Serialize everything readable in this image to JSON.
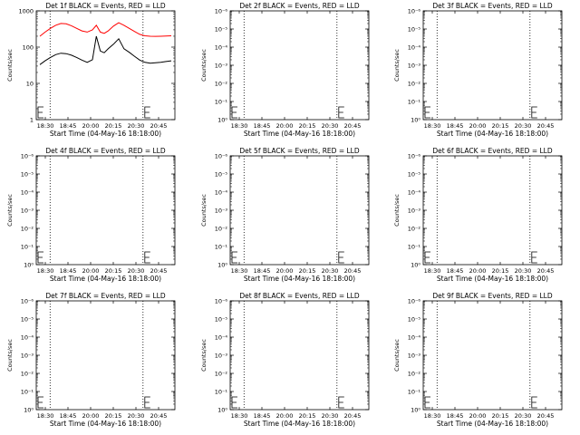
{
  "chart_data": [
    {
      "type": "line",
      "title": "Det 1f BLACK = Events, RED = LLD",
      "xlabel": "Start Time (04-May-16 18:18:00)",
      "ylabel": "Counts/sec",
      "x_ticks": [
        "18:30",
        "18:45",
        "20:00",
        "20:15",
        "20:30",
        "20:45"
      ],
      "y_scale": "log",
      "y_ticks": [
        "1",
        "10",
        "100",
        "1000"
      ],
      "ylim": [
        1,
        1000
      ],
      "xlim": [
        0,
        1
      ],
      "vlines": [
        0.1,
        0.77
      ],
      "grid": false,
      "series": [
        {
          "color": "#ff0000",
          "x": [
            0,
            0.04,
            0.08,
            0.12,
            0.16,
            0.2,
            0.24,
            0.28,
            0.32,
            0.36,
            0.4,
            0.43,
            0.46,
            0.49,
            0.52,
            0.56,
            0.6,
            0.64,
            0.68,
            0.72,
            0.76,
            0.8,
            0.84,
            0.88,
            0.92,
            0.96,
            1.0
          ],
          "values": [
            200,
            260,
            330,
            400,
            450,
            440,
            390,
            330,
            280,
            260,
            300,
            400,
            260,
            240,
            280,
            380,
            470,
            400,
            330,
            270,
            225,
            205,
            200,
            198,
            200,
            202,
            205
          ]
        },
        {
          "color": "#000000",
          "x": [
            0,
            0.04,
            0.08,
            0.12,
            0.16,
            0.2,
            0.24,
            0.28,
            0.32,
            0.36,
            0.4,
            0.43,
            0.46,
            0.49,
            0.52,
            0.56,
            0.6,
            0.64,
            0.68,
            0.72,
            0.76,
            0.8,
            0.84,
            0.88,
            0.92,
            0.96,
            1.0
          ],
          "values": [
            33,
            42,
            52,
            62,
            68,
            66,
            60,
            52,
            44,
            38,
            45,
            200,
            78,
            70,
            90,
            120,
            170,
            90,
            72,
            56,
            44,
            38,
            36,
            37,
            38,
            40,
            42
          ]
        }
      ]
    },
    {
      "type": "line",
      "title": "Det 2f BLACK = Events, RED = LLD",
      "xlabel": "Start Time (04-May-16 18:18:00)",
      "ylabel": "Counts/sec",
      "x_ticks": [
        "18:30",
        "18:45",
        "20:00",
        "20:15",
        "20:30",
        "20:45"
      ],
      "y_scale": "log",
      "y_ticks": [
        "10⁰",
        "10⁻¹",
        "10⁻²",
        "10⁻³",
        "10⁻⁴",
        "10⁻⁵",
        "10⁻⁶"
      ],
      "ylim": [
        1,
        1e-06
      ],
      "xlim": [
        0,
        1
      ],
      "vlines": [
        0.1,
        0.77
      ],
      "grid": false,
      "series": []
    },
    {
      "type": "line",
      "title": "Det 3f BLACK = Events, RED = LLD",
      "xlabel": "Start Time (04-May-16 18:18:00)",
      "ylabel": "Counts/sec",
      "x_ticks": [
        "18:30",
        "18:45",
        "20:00",
        "20:15",
        "20:30",
        "20:45"
      ],
      "y_scale": "log",
      "y_ticks": [
        "10⁰",
        "10⁻¹",
        "10⁻²",
        "10⁻³",
        "10⁻⁴",
        "10⁻⁵",
        "10⁻⁶"
      ],
      "ylim": [
        1,
        1e-06
      ],
      "xlim": [
        0,
        1
      ],
      "vlines": [
        0.1,
        0.77
      ],
      "grid": false,
      "series": []
    },
    {
      "type": "line",
      "title": "Det 4f BLACK = Events, RED = LLD",
      "xlabel": "Start Time (04-May-16 18:18:00)",
      "ylabel": "Counts/sec",
      "x_ticks": [
        "18:30",
        "18:45",
        "20:00",
        "20:15",
        "20:30",
        "20:45"
      ],
      "y_scale": "log",
      "y_ticks": [
        "10⁰",
        "10⁻¹",
        "10⁻²",
        "10⁻³",
        "10⁻⁴",
        "10⁻⁵",
        "10⁻⁶"
      ],
      "ylim": [
        1,
        1e-06
      ],
      "xlim": [
        0,
        1
      ],
      "vlines": [
        0.1,
        0.77
      ],
      "grid": false,
      "series": []
    },
    {
      "type": "line",
      "title": "Det 5f BLACK = Events, RED = LLD",
      "xlabel": "Start Time (04-May-16 18:18:00)",
      "ylabel": "Counts/sec",
      "x_ticks": [
        "18:30",
        "18:45",
        "20:00",
        "20:15",
        "20:30",
        "20:45"
      ],
      "y_scale": "log",
      "y_ticks": [
        "10⁰",
        "10⁻¹",
        "10⁻²",
        "10⁻³",
        "10⁻⁴",
        "10⁻⁵",
        "10⁻⁶"
      ],
      "ylim": [
        1,
        1e-06
      ],
      "xlim": [
        0,
        1
      ],
      "vlines": [
        0.1,
        0.77
      ],
      "grid": false,
      "series": []
    },
    {
      "type": "line",
      "title": "Det 6f BLACK = Events, RED = LLD",
      "xlabel": "Start Time (04-May-16 18:18:00)",
      "ylabel": "Counts/sec",
      "x_ticks": [
        "18:30",
        "18:45",
        "20:00",
        "20:15",
        "20:30",
        "20:45"
      ],
      "y_scale": "log",
      "y_ticks": [
        "10⁰",
        "10⁻¹",
        "10⁻²",
        "10⁻³",
        "10⁻⁴",
        "10⁻⁵",
        "10⁻⁶"
      ],
      "ylim": [
        1,
        1e-06
      ],
      "xlim": [
        0,
        1
      ],
      "vlines": [
        0.1,
        0.77
      ],
      "grid": false,
      "series": []
    },
    {
      "type": "line",
      "title": "Det 7f BLACK = Events, RED = LLD",
      "xlabel": "Start Time (04-May-16 18:18:00)",
      "ylabel": "Counts/sec",
      "x_ticks": [
        "18:30",
        "18:45",
        "20:00",
        "20:15",
        "20:30",
        "20:45"
      ],
      "y_scale": "log",
      "y_ticks": [
        "10⁰",
        "10⁻¹",
        "10⁻²",
        "10⁻³",
        "10⁻⁴",
        "10⁻⁵",
        "10⁻⁶"
      ],
      "ylim": [
        1,
        1e-06
      ],
      "xlim": [
        0,
        1
      ],
      "vlines": [
        0.1,
        0.77
      ],
      "grid": false,
      "series": []
    },
    {
      "type": "line",
      "title": "Det 8f BLACK = Events, RED = LLD",
      "xlabel": "Start Time (04-May-16 18:18:00)",
      "ylabel": "Counts/sec",
      "x_ticks": [
        "18:30",
        "18:45",
        "20:00",
        "20:15",
        "20:30",
        "20:45"
      ],
      "y_scale": "log",
      "y_ticks": [
        "10⁰",
        "10⁻¹",
        "10⁻²",
        "10⁻³",
        "10⁻⁴",
        "10⁻⁵",
        "10⁻⁶"
      ],
      "ylim": [
        1,
        1e-06
      ],
      "xlim": [
        0,
        1
      ],
      "vlines": [
        0.1,
        0.77
      ],
      "grid": false,
      "series": []
    },
    {
      "type": "line",
      "title": "Det 9f BLACK = Events, RED = LLD",
      "xlabel": "Start Time (04-May-16 18:18:00)",
      "ylabel": "Counts/sec",
      "x_ticks": [
        "18:30",
        "18:45",
        "20:00",
        "20:15",
        "20:30",
        "20:45"
      ],
      "y_scale": "log",
      "y_ticks": [
        "10⁰",
        "10⁻¹",
        "10⁻²",
        "10⁻³",
        "10⁻⁴",
        "10⁻⁵",
        "10⁻⁶"
      ],
      "ylim": [
        1,
        1e-06
      ],
      "xlim": [
        0,
        1
      ],
      "vlines": [
        0.1,
        0.77
      ],
      "grid": false,
      "series": []
    }
  ]
}
